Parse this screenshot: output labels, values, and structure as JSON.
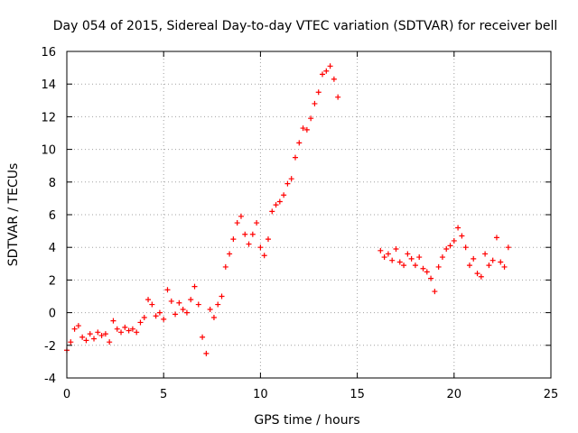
{
  "chart_data": {
    "type": "scatter",
    "title": "Day 054 of 2015, Sidereal Day-to-day VTEC variation (SDTVAR) for receiver bell",
    "xlabel": "GPS time / hours",
    "ylabel": "SDTVAR / TECUs",
    "xlim": [
      0,
      25
    ],
    "ylim": [
      -4,
      16
    ],
    "xticks": [
      "0",
      "5",
      "10",
      "15",
      "20",
      "25"
    ],
    "yticks": [
      "-4",
      "-2",
      "0",
      "2",
      "4",
      "6",
      "8",
      "10",
      "12",
      "14",
      "16"
    ],
    "grid": true,
    "series_color": "#ff0000",
    "marker": "plus",
    "series": [
      {
        "name": "SDTVAR",
        "x": [
          0.0,
          0.2,
          0.4,
          0.6,
          0.8,
          1.0,
          1.2,
          1.4,
          1.6,
          1.8,
          2.0,
          2.2,
          2.4,
          2.6,
          2.8,
          3.0,
          3.2,
          3.4,
          3.6,
          3.8,
          4.0,
          4.2,
          4.4,
          4.6,
          4.8,
          5.0,
          5.2,
          5.4,
          5.6,
          5.8,
          6.0,
          6.2,
          6.4,
          6.6,
          6.8,
          7.0,
          7.2,
          7.4,
          7.6,
          7.8,
          8.0,
          8.2,
          8.4,
          8.6,
          8.8,
          9.0,
          9.2,
          9.4,
          9.6,
          9.8,
          10.0,
          10.2,
          10.4,
          10.6,
          10.8,
          11.0,
          11.2,
          11.4,
          11.6,
          11.8,
          12.0,
          12.2,
          12.4,
          12.6,
          12.8,
          13.0,
          13.2,
          13.4,
          13.6,
          13.8,
          14.0,
          16.2,
          16.4,
          16.6,
          16.8,
          17.0,
          17.2,
          17.4,
          17.6,
          17.8,
          18.0,
          18.2,
          18.4,
          18.6,
          18.8,
          19.0,
          19.2,
          19.4,
          19.6,
          19.8,
          20.0,
          20.2,
          20.4,
          20.6,
          20.8,
          21.0,
          21.2,
          21.4,
          21.6,
          21.8,
          22.0,
          22.2,
          22.4,
          22.6,
          22.8
        ],
        "y": [
          -2.3,
          -1.8,
          -1.0,
          -0.8,
          -1.5,
          -1.7,
          -1.3,
          -1.6,
          -1.2,
          -1.4,
          -1.3,
          -1.8,
          -0.5,
          -1.0,
          -1.2,
          -0.9,
          -1.1,
          -1.0,
          -1.2,
          -0.6,
          -0.3,
          0.8,
          0.5,
          -0.2,
          0.0,
          -0.4,
          1.4,
          0.7,
          -0.1,
          0.6,
          0.2,
          0.0,
          0.8,
          1.6,
          0.5,
          -1.5,
          -2.5,
          0.2,
          -0.3,
          0.5,
          1.0,
          2.8,
          3.6,
          4.5,
          5.5,
          5.9,
          4.8,
          4.2,
          4.8,
          5.5,
          4.0,
          3.5,
          4.5,
          6.2,
          6.6,
          6.8,
          7.2,
          7.9,
          8.2,
          9.5,
          10.4,
          11.3,
          11.2,
          11.9,
          12.8,
          13.5,
          14.6,
          14.8,
          15.1,
          14.3,
          13.2,
          3.8,
          3.4,
          3.6,
          3.2,
          3.9,
          3.1,
          2.9,
          3.6,
          3.3,
          2.9,
          3.4,
          2.7,
          2.5,
          2.1,
          1.3,
          2.8,
          3.4,
          3.9,
          4.1,
          4.4,
          5.2,
          4.7,
          4.0,
          2.9,
          3.3,
          2.4,
          2.2,
          3.6,
          2.9,
          3.2,
          4.6,
          3.1,
          2.8,
          4.0
        ]
      }
    ]
  }
}
